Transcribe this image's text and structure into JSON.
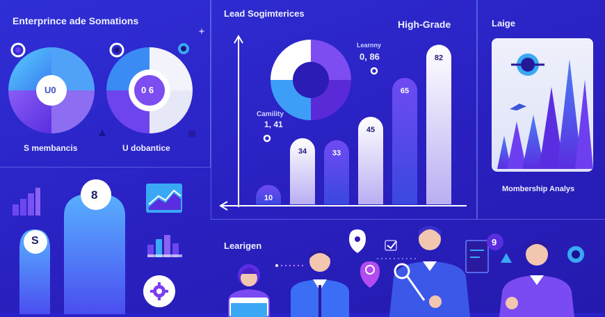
{
  "panels": {
    "top_left_title": "Enterprince ade Somations",
    "donut_left_caption": "S membancis",
    "donut_right_caption": "U dobantice",
    "center_title": "Lead Sogimterices",
    "high_grade": "High-Grade",
    "right_title": "Laige",
    "right_caption": "Mombership Analys",
    "bottom_title": "Learigen"
  },
  "donuts": {
    "left_center": "U0",
    "right_center": "0 6"
  },
  "annotations": {
    "funnel_label_1": "Learnny",
    "funnel_value": "0, 86",
    "cumulative_label": "Camility",
    "cumulative_value": "1, 41"
  },
  "chart_data": {
    "type": "bar",
    "categories": [
      "",
      "",
      "",
      "",
      "",
      ""
    ],
    "values": [
      10,
      34,
      33,
      45,
      65,
      82
    ],
    "value_labels": [
      "10",
      "34",
      "33",
      "45",
      "65",
      "82"
    ],
    "title": "Lead Sogimterices",
    "xlabel": "",
    "ylabel": ""
  },
  "left_badges": {
    "badge_top": "8",
    "badge_left": "S"
  },
  "colors": {
    "background": "#2a22c8",
    "accent_purple": "#6a3df0",
    "accent_cyan": "#3aa8f5",
    "light_card": "#e6e9f8"
  }
}
